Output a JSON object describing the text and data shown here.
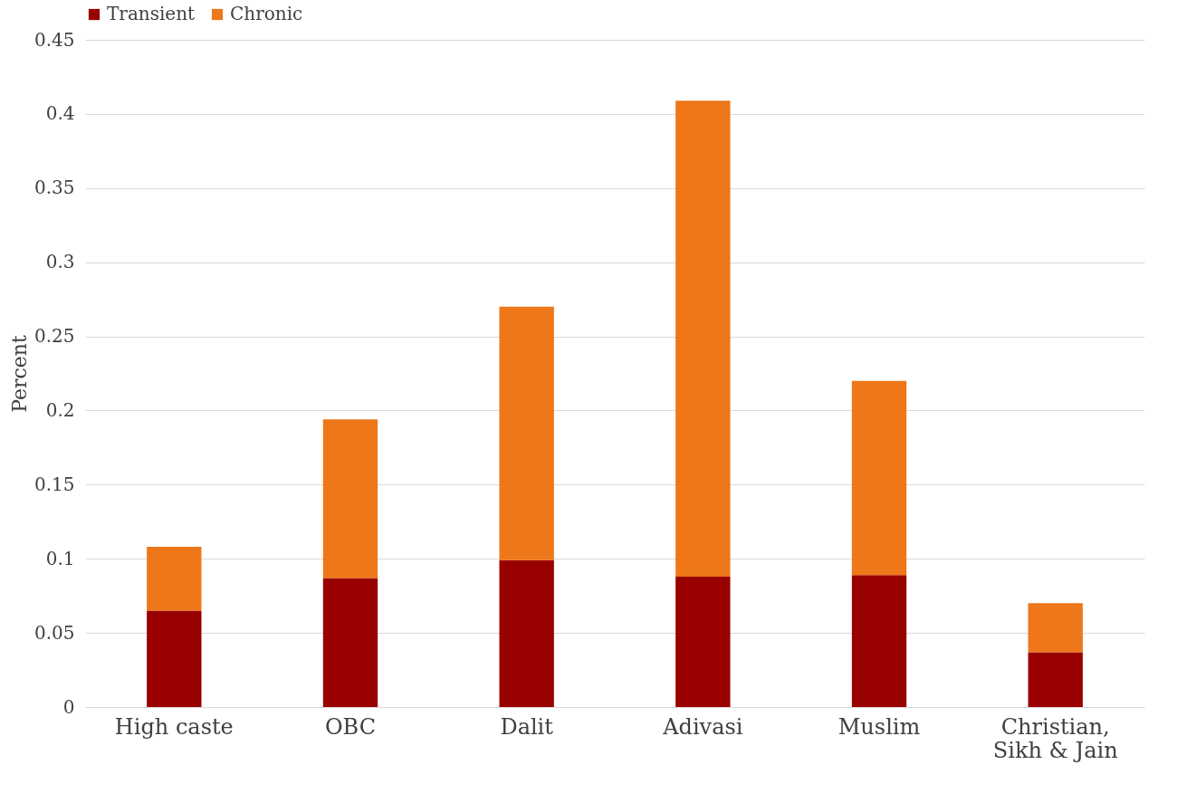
{
  "chart_data": {
    "type": "bar",
    "stacked": true,
    "ylabel": "Percent",
    "categories": [
      "High caste",
      "OBC",
      "Dalit",
      "Adivasi",
      "Muslim",
      "Christian, Sikh & Jain"
    ],
    "series": [
      {
        "name": "Transient",
        "color": "#990000",
        "values": [
          0.065,
          0.087,
          0.099,
          0.088,
          0.089,
          0.037
        ]
      },
      {
        "name": "Chronic",
        "color": "#ee7719",
        "values": [
          0.043,
          0.107,
          0.171,
          0.321,
          0.131,
          0.033
        ]
      }
    ],
    "ylim": [
      0,
      0.45
    ],
    "yticks": [
      0,
      0.05,
      0.1,
      0.15,
      0.2,
      0.25,
      0.3,
      0.35,
      0.4,
      0.45
    ],
    "grid": "y",
    "legend": "top"
  }
}
